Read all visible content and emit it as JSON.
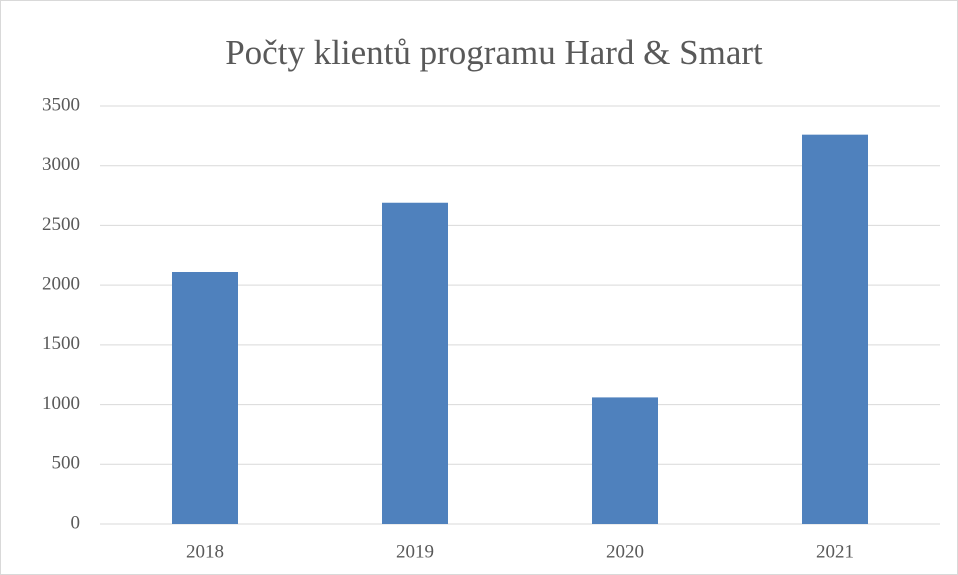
{
  "chart_data": {
    "type": "bar",
    "title": "Počty klientů programu Hard & Smart",
    "categories": [
      "2018",
      "2019",
      "2020",
      "2021"
    ],
    "values": [
      2110,
      2690,
      1060,
      3260
    ],
    "color": "#4f81bd",
    "ylim": [
      0,
      3500
    ],
    "yticks": [
      0,
      500,
      1000,
      1500,
      2000,
      2500,
      3000,
      3500
    ],
    "grid": true
  }
}
